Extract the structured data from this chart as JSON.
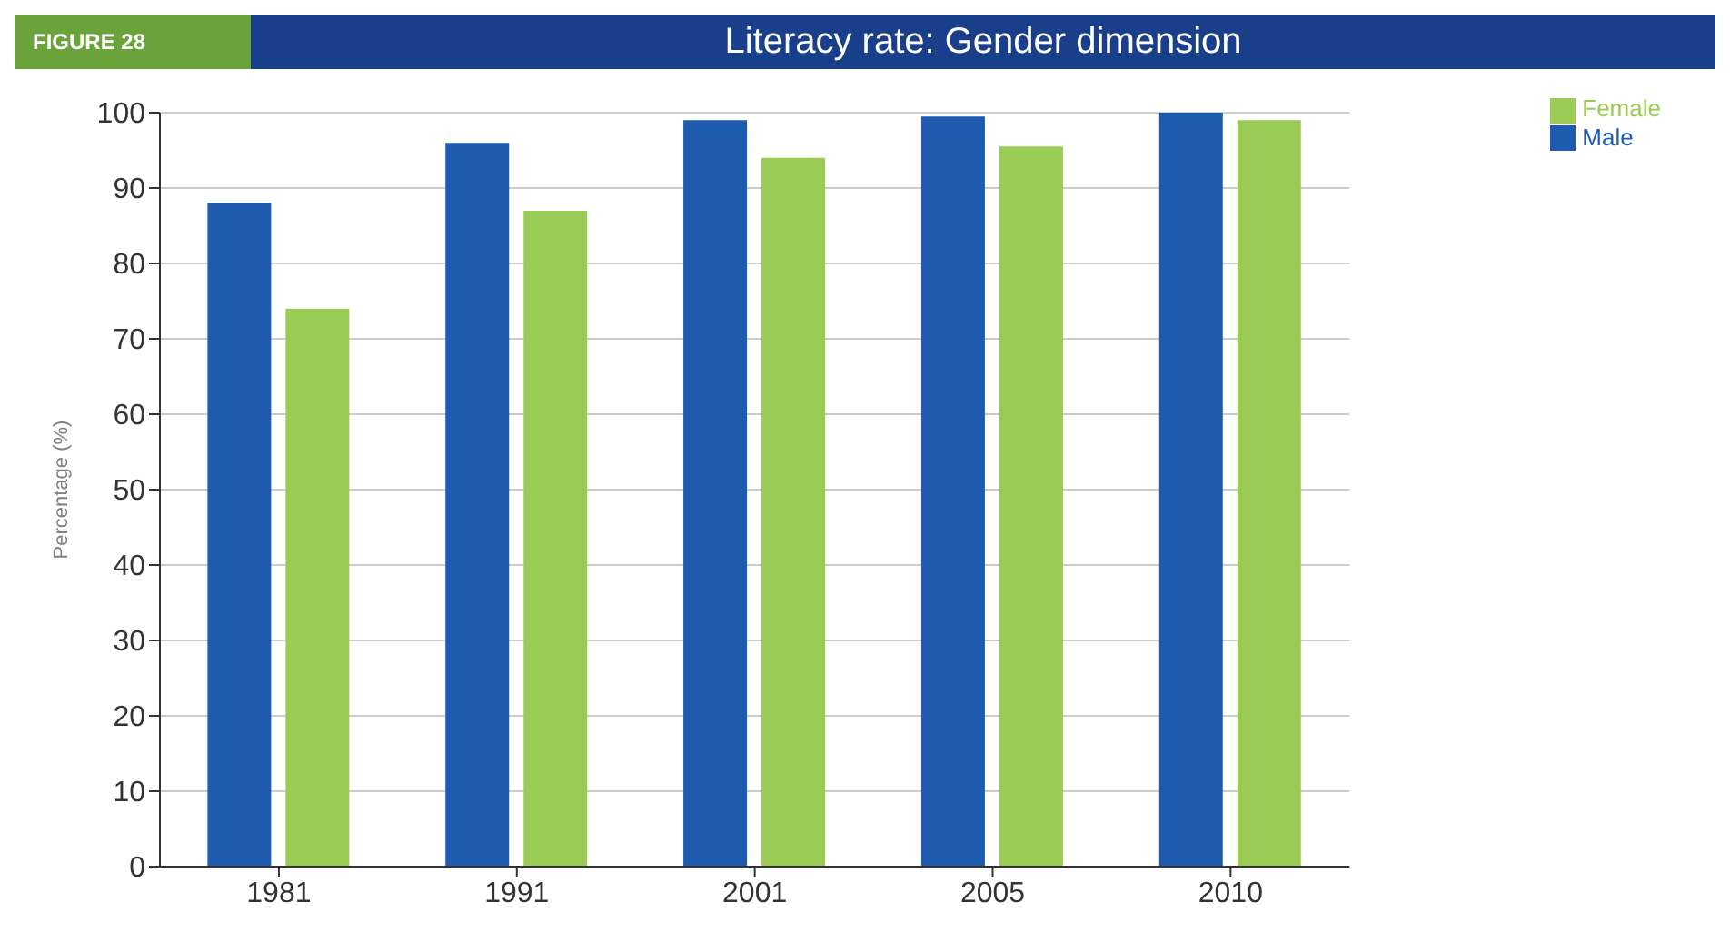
{
  "chart_data": {
    "type": "bar",
    "title": "Literacy rate: Gender dimension",
    "annotations": [
      "FIGURE 28"
    ],
    "ylabel": "Percentage (%)",
    "categories": [
      "1981",
      "1991",
      "2001",
      "2005",
      "2010"
    ],
    "series": [
      {
        "name": "Male",
        "color": "#1f5cb0",
        "values": [
          88,
          96,
          99,
          99.5,
          100
        ]
      },
      {
        "name": "Female",
        "color": "#9acb55",
        "values": [
          74,
          87,
          94,
          95.5,
          99
        ]
      }
    ],
    "ylim": [
      0,
      100
    ],
    "yticks": [
      0,
      10,
      20,
      30,
      40,
      50,
      60,
      70,
      80,
      90,
      100
    ],
    "grid": "y",
    "legend": "top right"
  }
}
